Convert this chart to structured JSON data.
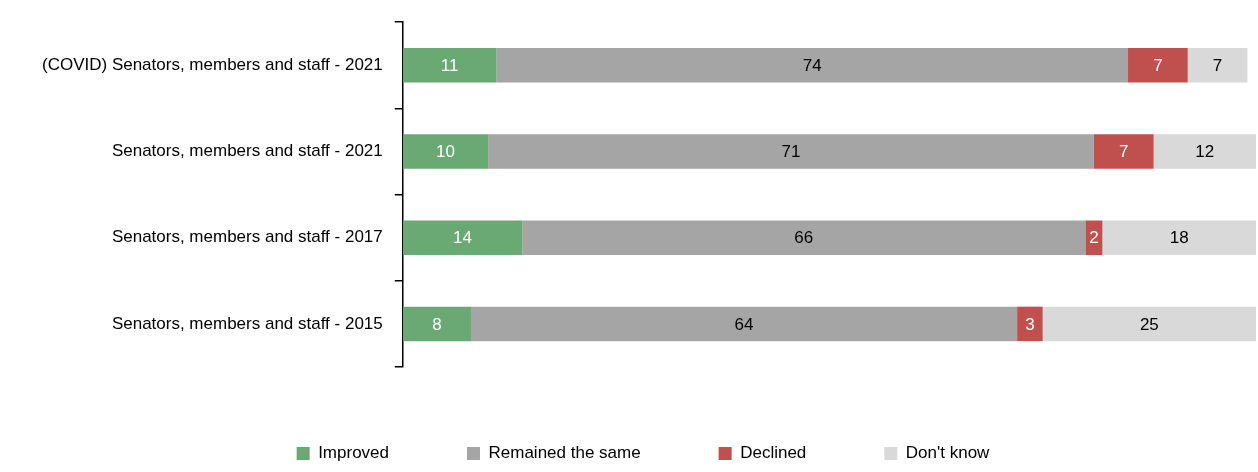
{
  "chart_data": {
    "type": "bar",
    "orientation": "horizontal",
    "stacked": true,
    "data_labels": true,
    "legend": "bottom",
    "categories": [
      "(COVID) Senators, members and staff - 2021",
      "Senators, members and staff - 2021",
      "Senators, members and staff - 2017",
      "Senators, members and staff - 2015"
    ],
    "series": [
      {
        "name": "Improved",
        "color": "#6aa874",
        "values": [
          11,
          10,
          14,
          8
        ]
      },
      {
        "name": "Remained the same",
        "color": "#a5a5a5",
        "values": [
          74,
          71,
          66,
          64
        ]
      },
      {
        "name": "Declined",
        "color": "#c0504d",
        "values": [
          7,
          7,
          2,
          3
        ]
      },
      {
        "name": "Don't know",
        "color": "#d9d9d9",
        "values": [
          7,
          12,
          18,
          25
        ]
      }
    ]
  }
}
